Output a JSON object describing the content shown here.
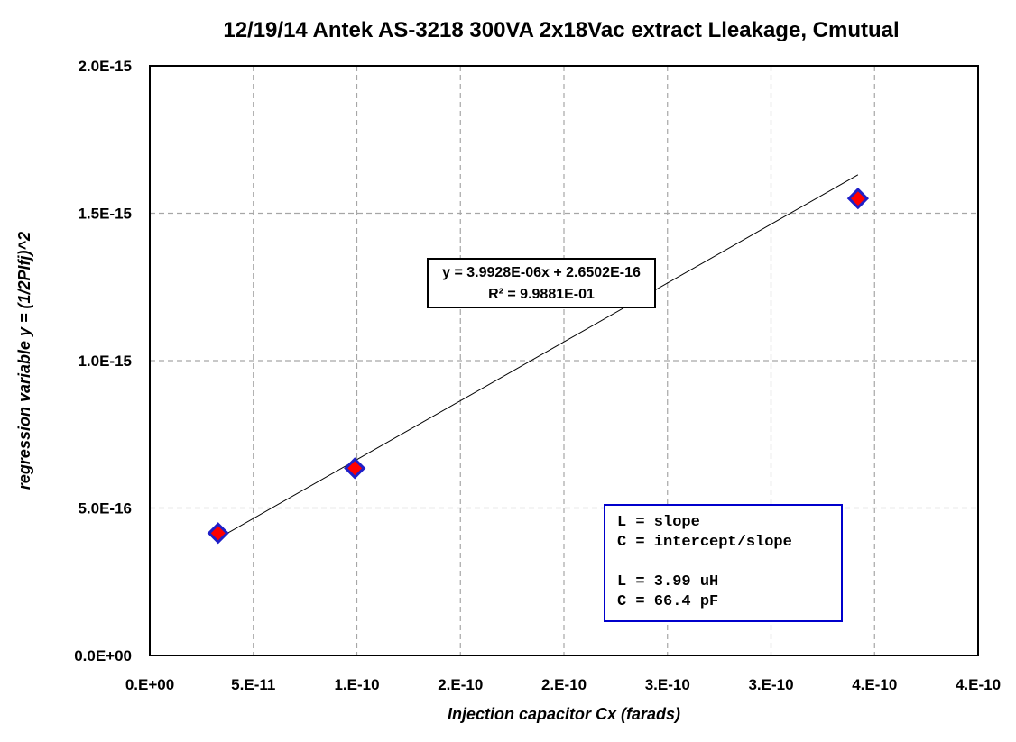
{
  "chart_data": {
    "type": "scatter",
    "title": "12/19/14  Antek  AS-3218   300VA  2x18Vac  extract  Lleakage, Cmutual",
    "xlabel": "Injection capacitor  Cx (farads)",
    "ylabel": "regression variable y = (1/2PIfj)^2",
    "xlim": [
      0,
      4e-10
    ],
    "ylim": [
      0,
      2e-15
    ],
    "x_tick_labels": [
      "0.E+00",
      "5.E-11",
      "1.E-10",
      "2.E-10",
      "2.E-10",
      "3.E-10",
      "3.E-10",
      "4.E-10",
      "4.E-10"
    ],
    "y_tick_labels": [
      "0.0E+00",
      "5.0E-16",
      "1.0E-15",
      "1.5E-15",
      "2.0E-15"
    ],
    "grid": true,
    "points": [
      {
        "x": 3.3e-11,
        "y": 4.15e-16
      },
      {
        "x": 9.9e-11,
        "y": 6.35e-16
      },
      {
        "x": 3.42e-10,
        "y": 1.55e-15
      }
    ],
    "trendline": {
      "slope": 3.9928e-06,
      "intercept": 2.6502e-16,
      "equation": "y = 3.9928E-06x + 2.6502E-16",
      "r_squared": "R² = 9.9881E-01"
    },
    "annotation_lines": [
      "L = slope",
      "C = intercept/slope",
      "",
      "L = 3.99 uH",
      "C = 66.4 pF"
    ],
    "colors": {
      "marker_fill": "#ff0000",
      "marker_stroke": "#1f1fc8",
      "annotation_border": "#0000cc",
      "grid": "#a6a6a6",
      "trendline": "#000000"
    }
  }
}
